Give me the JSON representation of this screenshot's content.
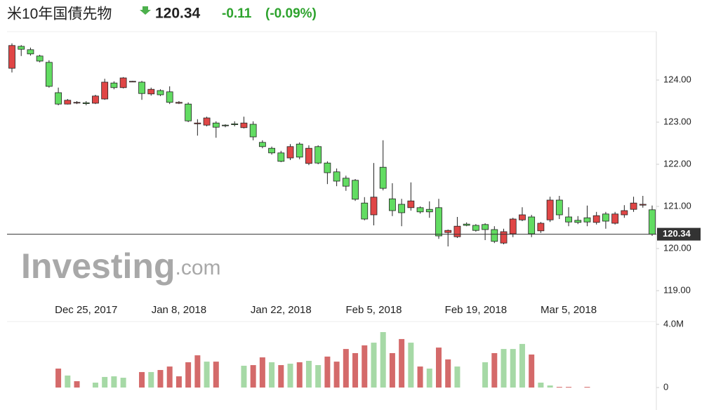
{
  "header": {
    "watermark_main": "Investing",
    "watermark_suffix": ".com"
  },
  "chart_data": [
    {
      "type": "candlestick",
      "title": "米10年国債先物",
      "last": 120.34,
      "change": -0.11,
      "change_pct": {
        "value": -0.09,
        "label": "(-0.09%)"
      },
      "up_color": "#e04646",
      "down_color": "#62dc62",
      "categories": [
        null,
        null,
        null,
        null,
        null,
        null,
        null,
        null,
        "Dec 25, 2017",
        null,
        null,
        null,
        null,
        null,
        null,
        null,
        null,
        null,
        "Jan 8, 2018",
        null,
        null,
        null,
        null,
        null,
        null,
        null,
        null,
        null,
        null,
        "Jan 22, 2018",
        null,
        null,
        null,
        null,
        null,
        null,
        null,
        null,
        null,
        "Feb 5, 2018",
        null,
        null,
        null,
        null,
        null,
        null,
        null,
        null,
        null,
        null,
        "Feb 19, 2018",
        null,
        null,
        null,
        null,
        null,
        null,
        null,
        null,
        null,
        "Mar 5, 2018",
        null,
        null,
        null,
        null,
        null,
        null,
        null,
        null,
        null
      ],
      "open": [
        124.28,
        124.8,
        124.72,
        124.57,
        124.42,
        123.7,
        123.43,
        123.46,
        123.46,
        123.45,
        123.55,
        123.93,
        123.82,
        123.96,
        123.95,
        123.67,
        123.75,
        123.72,
        123.45,
        123.43,
        122.96,
        122.93,
        122.98,
        122.93,
        122.96,
        122.87,
        122.95,
        122.52,
        122.38,
        122.27,
        122.15,
        122.48,
        122.02,
        122.42,
        122.03,
        121.82,
        121.67,
        121.62,
        121.08,
        120.8,
        121.93,
        121.18,
        121.05,
        120.97,
        120.97,
        120.93,
        120.97,
        120.38,
        120.28,
        120.58,
        120.55,
        120.57,
        120.45,
        120.13,
        120.35,
        120.68,
        120.75,
        120.42,
        120.68,
        121.15,
        120.75,
        120.67,
        120.73,
        120.62,
        120.82,
        120.6,
        120.8,
        120.93,
        121.03,
        120.92
      ],
      "high": [
        124.87,
        124.83,
        124.77,
        124.6,
        124.47,
        123.82,
        123.55,
        123.5,
        123.5,
        123.65,
        124.03,
        123.97,
        124.07,
        123.98,
        123.98,
        123.82,
        123.78,
        123.85,
        123.5,
        123.47,
        123.07,
        123.13,
        123.02,
        122.95,
        123.02,
        123.13,
        123.02,
        122.57,
        122.42,
        122.32,
        122.48,
        122.52,
        122.45,
        122.45,
        122.07,
        121.9,
        121.73,
        121.65,
        121.22,
        122.03,
        122.57,
        121.55,
        121.18,
        121.57,
        121.0,
        121.12,
        121.18,
        120.45,
        120.75,
        120.62,
        120.58,
        120.6,
        120.53,
        120.47,
        120.73,
        120.98,
        120.8,
        120.63,
        121.23,
        121.25,
        120.98,
        120.77,
        121.02,
        120.87,
        120.87,
        120.87,
        121.03,
        121.23,
        121.25,
        121.02
      ],
      "low": [
        124.18,
        124.57,
        124.58,
        124.42,
        123.82,
        123.4,
        123.42,
        123.43,
        123.4,
        123.43,
        123.53,
        123.78,
        123.8,
        123.95,
        123.53,
        123.63,
        123.62,
        123.43,
        123.43,
        123.0,
        122.68,
        122.9,
        122.63,
        122.88,
        122.9,
        122.85,
        122.57,
        122.38,
        122.23,
        122.05,
        122.1,
        122.12,
        121.98,
        122.0,
        121.53,
        121.48,
        121.37,
        121.13,
        120.67,
        120.55,
        121.38,
        120.77,
        120.53,
        120.9,
        120.83,
        120.73,
        120.23,
        120.05,
        120.25,
        120.53,
        120.4,
        120.2,
        120.13,
        120.1,
        120.27,
        120.65,
        120.27,
        120.37,
        120.63,
        120.7,
        120.53,
        120.58,
        120.53,
        120.57,
        120.47,
        120.57,
        120.73,
        120.87,
        120.97,
        120.3
      ],
      "close": [
        124.82,
        124.73,
        124.62,
        124.45,
        123.85,
        123.43,
        123.52,
        123.47,
        123.44,
        123.62,
        123.95,
        123.82,
        124.05,
        123.97,
        123.68,
        123.78,
        123.65,
        123.47,
        123.47,
        123.03,
        122.98,
        123.1,
        122.88,
        122.92,
        122.94,
        122.98,
        122.65,
        122.42,
        122.27,
        122.07,
        122.42,
        122.17,
        122.38,
        122.03,
        121.8,
        121.6,
        121.48,
        121.17,
        120.7,
        121.22,
        121.43,
        120.9,
        120.85,
        121.13,
        120.87,
        120.87,
        120.3,
        120.43,
        120.53,
        120.55,
        120.43,
        120.45,
        120.17,
        120.4,
        120.7,
        120.8,
        120.35,
        120.6,
        121.15,
        120.8,
        120.63,
        120.62,
        120.63,
        120.78,
        120.65,
        120.82,
        120.9,
        121.08,
        121.05,
        120.34
      ],
      "ylim": [
        118.7,
        125.15
      ],
      "yticks": [
        {
          "value": 119,
          "label": "119.00"
        },
        {
          "value": 120,
          "label": "120.00"
        },
        {
          "value": 121,
          "label": "121.00"
        },
        {
          "value": 122,
          "label": "122.00"
        },
        {
          "value": 123,
          "label": "123.00"
        },
        {
          "value": 124,
          "label": "124.00"
        }
      ]
    },
    {
      "type": "bar",
      "values": [
        null,
        null,
        null,
        null,
        null,
        1200000,
        760000,
        400000,
        null,
        310000,
        670000,
        710000,
        620000,
        null,
        980000,
        980000,
        1110000,
        1330000,
        710000,
        1600000,
        2040000,
        1640000,
        1640000,
        null,
        null,
        1380000,
        1420000,
        1910000,
        1600000,
        1420000,
        1510000,
        1600000,
        1690000,
        1420000,
        1960000,
        1640000,
        2440000,
        2180000,
        2670000,
        2840000,
        3510000,
        2180000,
        3070000,
        2840000,
        1330000,
        1200000,
        2530000,
        1780000,
        1330000,
        null,
        null,
        1600000,
        2180000,
        2440000,
        2440000,
        2760000,
        2090000,
        310000,
        130000,
        40000,
        40000,
        null,
        40000,
        null,
        null,
        null,
        null,
        null,
        null,
        null
      ],
      "colors": [
        null,
        null,
        null,
        null,
        null,
        "#d46a6a",
        "#a6d9a6",
        "#d46a6a",
        null,
        "#a6d9a6",
        "#a6d9a6",
        "#a6d9a6",
        "#a6d9a6",
        null,
        "#d46a6a",
        "#a6d9a6",
        "#d46a6a",
        "#d46a6a",
        "#d46a6a",
        "#d46a6a",
        "#d46a6a",
        "#a6d9a6",
        "#d46a6a",
        null,
        null,
        "#a6d9a6",
        "#d46a6a",
        "#d46a6a",
        "#a6d9a6",
        "#d46a6a",
        "#a6d9a6",
        "#d46a6a",
        "#a6d9a6",
        "#a6d9a6",
        "#d46a6a",
        "#d46a6a",
        "#d46a6a",
        "#d46a6a",
        "#d46a6a",
        "#a6d9a6",
        "#a6d9a6",
        "#d46a6a",
        "#d46a6a",
        "#a6d9a6",
        "#d46a6a",
        "#a6d9a6",
        "#d46a6a",
        "#d46a6a",
        "#a6d9a6",
        null,
        null,
        "#a6d9a6",
        "#d46a6a",
        "#a6d9a6",
        "#a6d9a6",
        "#a6d9a6",
        "#d46a6a",
        "#a6d9a6",
        "#a6d9a6",
        "#d46a6a",
        "#d46a6a",
        null,
        "#d46a6a",
        null,
        null,
        null,
        null,
        null,
        null,
        null
      ],
      "ylim": [
        0,
        4000000
      ],
      "yticks": [
        0,
        {
          "value": 4000000,
          "label": "4.0M"
        }
      ]
    }
  ]
}
